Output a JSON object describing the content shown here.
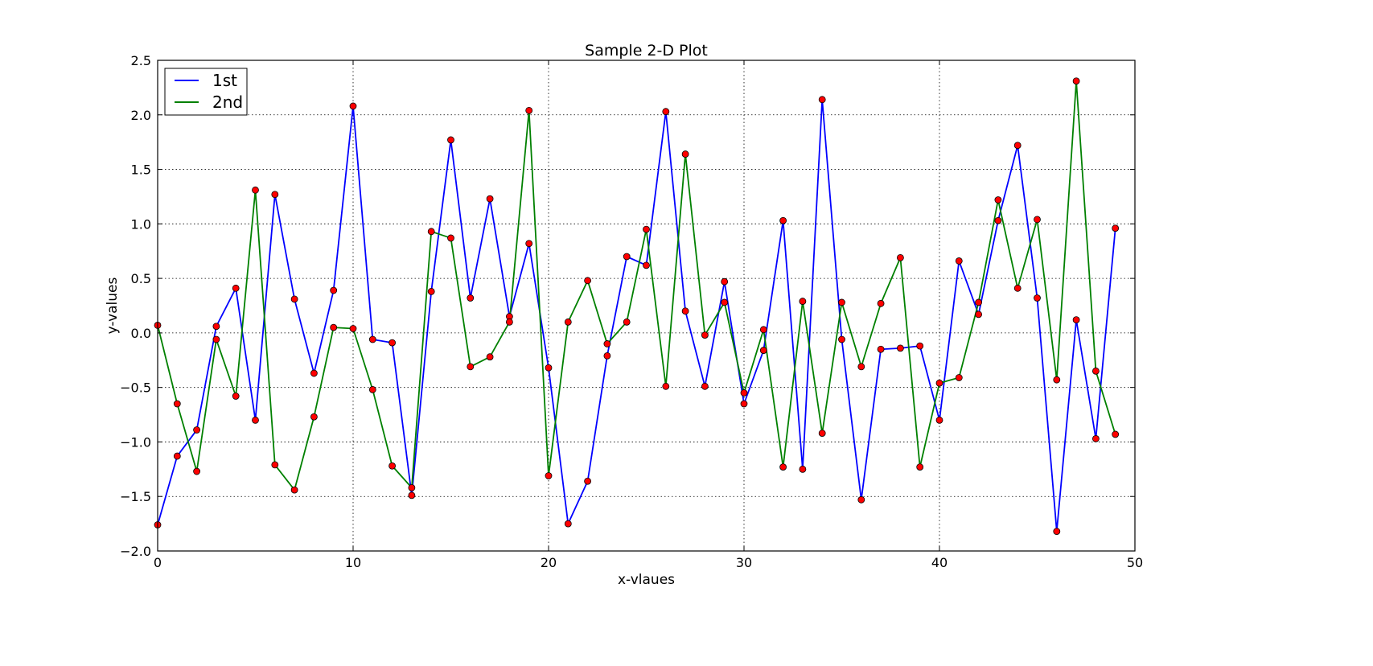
{
  "chart_data": {
    "type": "line",
    "title": "Sample 2-D Plot",
    "xlabel": "x-vlaues",
    "ylabel": "y-values",
    "xlim": [
      0,
      50
    ],
    "ylim": [
      -2.0,
      2.5
    ],
    "xticks": [
      0,
      10,
      20,
      30,
      40,
      50
    ],
    "yticks": [
      -2.0,
      -1.5,
      -1.0,
      -0.5,
      0.0,
      0.5,
      1.0,
      1.5,
      2.0,
      2.5
    ],
    "xtick_labels": [
      "0",
      "10",
      "20",
      "30",
      "40",
      "50"
    ],
    "ytick_labels": [
      "−2.0",
      "−1.5",
      "−1.0",
      "−0.5",
      "0.0",
      "0.5",
      "1.0",
      "1.5",
      "2.0",
      "2.5"
    ],
    "grid": true,
    "legend_position": "top-left",
    "marker_color": "#ff0000",
    "series": [
      {
        "name": "1st",
        "color": "#0000ff",
        "x": [
          0,
          1,
          2,
          3,
          4,
          5,
          6,
          7,
          8,
          9,
          10,
          11,
          12,
          13,
          14,
          15,
          16,
          17,
          18,
          19,
          20,
          21,
          22,
          23,
          24,
          25,
          26,
          27,
          28,
          29,
          30,
          31,
          32,
          33,
          34,
          35,
          36,
          37,
          38,
          39,
          40,
          41,
          42,
          43,
          44,
          45,
          46,
          47,
          48,
          49
        ],
        "values": [
          -1.76,
          -1.13,
          -0.89,
          0.06,
          0.41,
          -0.8,
          1.27,
          0.31,
          -0.37,
          0.39,
          2.08,
          -0.06,
          -0.09,
          -1.49,
          0.38,
          1.77,
          0.32,
          1.23,
          0.15,
          0.82,
          -0.32,
          -1.75,
          -1.36,
          -0.21,
          0.7,
          0.62,
          2.03,
          0.2,
          -0.49,
          0.47,
          -0.65,
          -0.16,
          1.03,
          -1.25,
          2.14,
          -0.06,
          -1.53,
          -0.15,
          -0.14,
          -0.12,
          -0.8,
          0.66,
          0.17,
          1.03,
          1.72,
          0.32,
          -1.82,
          0.12,
          -0.97,
          0.96
        ]
      },
      {
        "name": "2nd",
        "color": "#008000",
        "x": [
          0,
          1,
          2,
          3,
          4,
          5,
          6,
          7,
          8,
          9,
          10,
          11,
          12,
          13,
          14,
          15,
          16,
          17,
          18,
          19,
          20,
          21,
          22,
          23,
          24,
          25,
          26,
          27,
          28,
          29,
          30,
          31,
          32,
          33,
          34,
          35,
          36,
          37,
          38,
          39,
          40,
          41,
          42,
          43,
          44,
          45,
          46,
          47,
          48,
          49
        ],
        "values": [
          0.07,
          -0.65,
          -1.27,
          -0.06,
          -0.58,
          1.31,
          -1.21,
          -1.44,
          -0.77,
          0.05,
          0.04,
          -0.52,
          -1.22,
          -1.42,
          0.93,
          0.87,
          -0.31,
          -0.22,
          0.1,
          2.04,
          -1.31,
          0.1,
          0.48,
          -0.1,
          0.1,
          0.95,
          -0.49,
          1.64,
          -0.02,
          0.28,
          -0.55,
          0.03,
          -1.23,
          0.29,
          -0.92,
          0.28,
          -0.31,
          0.27,
          0.69,
          -1.23,
          -0.46,
          -0.41,
          0.28,
          1.22,
          0.41,
          1.04,
          -0.43,
          2.31,
          -0.35,
          -0.93
        ]
      }
    ]
  }
}
